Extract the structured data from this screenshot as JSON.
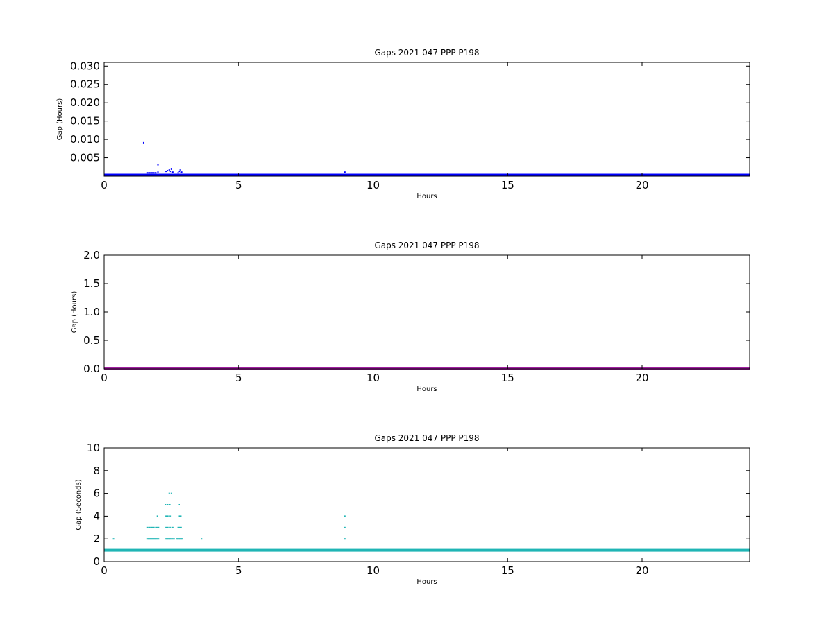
{
  "chart_data": [
    {
      "type": "scatter",
      "title": "Gaps 2021 047 PPP  P198",
      "xlabel": "Hours",
      "ylabel": "Gap (Hours)",
      "xlim": [
        0,
        24
      ],
      "ylim": [
        0,
        0.031
      ],
      "xticks": [
        0,
        5,
        10,
        15,
        20
      ],
      "xtick_labels": [
        "0",
        "5",
        "10",
        "15",
        "20"
      ],
      "yticks": [
        0.005,
        0.01,
        0.015,
        0.02,
        0.025,
        0.03
      ],
      "ytick_labels": [
        "0.005",
        "0.010",
        "0.015",
        "0.020",
        "0.025",
        "0.030"
      ],
      "grid": false,
      "color": "#0000ff",
      "baseline": {
        "y": 0.00028,
        "x_from": 0,
        "x_to": 24
      },
      "series": [
        {
          "values": [
            [
              1.47,
              0.0091
            ],
            [
              2.0,
              0.0031
            ],
            [
              1.62,
              0.0009
            ],
            [
              1.7,
              0.0009
            ],
            [
              1.78,
              0.0009
            ],
            [
              1.85,
              0.0009
            ],
            [
              1.92,
              0.0009
            ],
            [
              2.0,
              0.0011
            ],
            [
              2.3,
              0.0013
            ],
            [
              2.35,
              0.0015
            ],
            [
              2.42,
              0.0017
            ],
            [
              2.47,
              0.0013
            ],
            [
              2.5,
              0.0019
            ],
            [
              2.55,
              0.0011
            ],
            [
              2.75,
              0.0009
            ],
            [
              2.8,
              0.0013
            ],
            [
              2.83,
              0.0017
            ],
            [
              2.88,
              0.0011
            ],
            [
              8.95,
              0.0011
            ]
          ]
        }
      ]
    },
    {
      "type": "scatter",
      "title": "Gaps 2021 047 PPP  P198",
      "xlabel": "Hours",
      "ylabel": "Gap (Hours)",
      "xlim": [
        0,
        24
      ],
      "ylim": [
        0,
        2.0
      ],
      "xticks": [
        0,
        5,
        10,
        15,
        20
      ],
      "xtick_labels": [
        "0",
        "5",
        "10",
        "15",
        "20"
      ],
      "yticks": [
        0.0,
        0.5,
        1.0,
        1.5,
        2.0
      ],
      "ytick_labels": [
        "0.0",
        "0.5",
        "1.0",
        "1.5",
        "2.0"
      ],
      "grid": false,
      "color": "#a020a0",
      "baseline": {
        "y": 0.005,
        "x_from": 0,
        "x_to": 24
      },
      "series": [
        {
          "values": [
            [
              2.85,
              0.02
            ]
          ]
        }
      ]
    },
    {
      "type": "scatter",
      "title": "Gaps 2021 047 PPP  P198",
      "xlabel": "Hours",
      "ylabel": "Gap (Seconds)",
      "xlim": [
        0,
        24
      ],
      "ylim": [
        0,
        10
      ],
      "xticks": [
        0,
        5,
        10,
        15,
        20
      ],
      "xtick_labels": [
        "0",
        "5",
        "10",
        "15",
        "20"
      ],
      "yticks": [
        0,
        2,
        4,
        6,
        8,
        10
      ],
      "ytick_labels": [
        "0",
        "2",
        "4",
        "6",
        "8",
        "10"
      ],
      "grid": false,
      "color": "#1fb5b5",
      "baseline": {
        "y": 1,
        "x_from": 0,
        "x_to": 24
      },
      "series": [
        {
          "values": [
            [
              0.35,
              2
            ],
            [
              1.62,
              2
            ],
            [
              1.66,
              2
            ],
            [
              1.7,
              2
            ],
            [
              1.74,
              2
            ],
            [
              1.78,
              2
            ],
            [
              1.82,
              2
            ],
            [
              1.86,
              2
            ],
            [
              1.9,
              2
            ],
            [
              1.94,
              2
            ],
            [
              1.98,
              2
            ],
            [
              2.02,
              2
            ],
            [
              2.3,
              2
            ],
            [
              2.34,
              2
            ],
            [
              2.38,
              2
            ],
            [
              2.42,
              2
            ],
            [
              2.46,
              2
            ],
            [
              2.5,
              2
            ],
            [
              2.55,
              2
            ],
            [
              2.6,
              2
            ],
            [
              2.7,
              2
            ],
            [
              2.74,
              2
            ],
            [
              2.78,
              2
            ],
            [
              2.82,
              2
            ],
            [
              2.86,
              2
            ],
            [
              2.9,
              2
            ],
            [
              3.62,
              2
            ],
            [
              8.95,
              2
            ],
            [
              1.62,
              3
            ],
            [
              1.7,
              3
            ],
            [
              1.78,
              3
            ],
            [
              1.84,
              3
            ],
            [
              1.9,
              3
            ],
            [
              1.96,
              3
            ],
            [
              2.02,
              3
            ],
            [
              2.3,
              3
            ],
            [
              2.36,
              3
            ],
            [
              2.42,
              3
            ],
            [
              2.48,
              3
            ],
            [
              2.55,
              3
            ],
            [
              2.75,
              3
            ],
            [
              2.8,
              3
            ],
            [
              2.86,
              3
            ],
            [
              8.95,
              3
            ],
            [
              1.98,
              4
            ],
            [
              2.3,
              4
            ],
            [
              2.36,
              4
            ],
            [
              2.42,
              4
            ],
            [
              2.48,
              4
            ],
            [
              2.8,
              4
            ],
            [
              2.85,
              4
            ],
            [
              8.95,
              4
            ],
            [
              2.28,
              5
            ],
            [
              2.36,
              5
            ],
            [
              2.44,
              5
            ],
            [
              2.8,
              5
            ],
            [
              2.42,
              6
            ],
            [
              2.5,
              6
            ]
          ]
        }
      ]
    }
  ]
}
